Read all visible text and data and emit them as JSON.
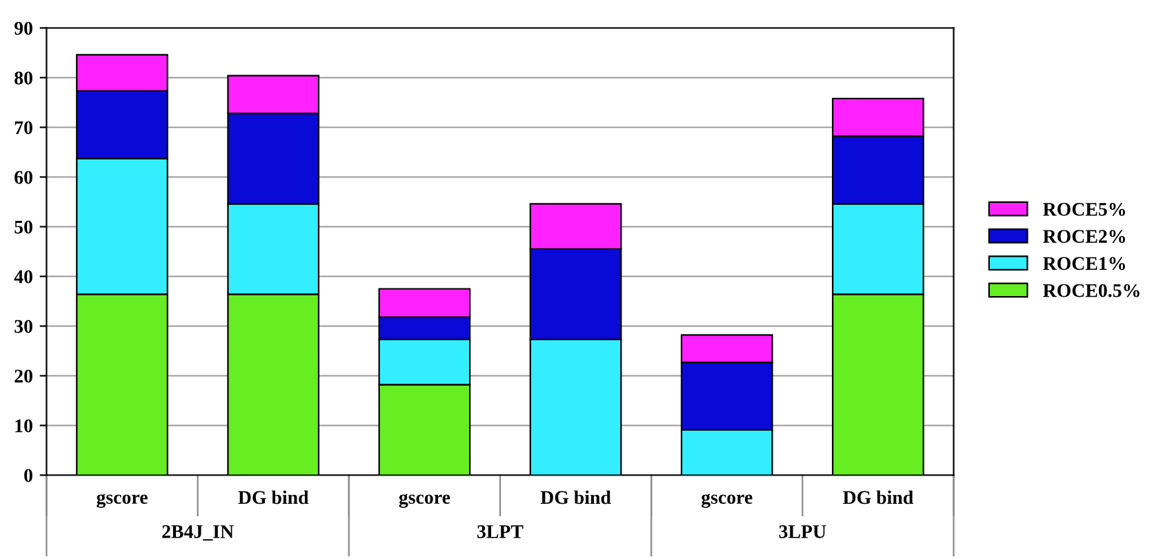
{
  "chart_data": {
    "type": "bar",
    "stacked": true,
    "categories": [
      "gscore",
      "DG bind",
      "gscore",
      "DG bind",
      "gscore",
      "DG bind"
    ],
    "series": [
      {
        "name": "ROCE0.5%",
        "color": "#66ee22",
        "values": [
          36.4,
          36.4,
          18.2,
          0,
          0,
          36.4
        ]
      },
      {
        "name": "ROCE1%",
        "color": "#33eeff",
        "values": [
          27.3,
          18.2,
          9.1,
          27.3,
          9.1,
          18.2
        ]
      },
      {
        "name": "ROCE2%",
        "color": "#0a0ad8",
        "values": [
          13.6,
          18.2,
          4.5,
          18.2,
          13.6,
          13.6
        ]
      },
      {
        "name": "ROCE5%",
        "color": "#ff22ff",
        "values": [
          7.3,
          7.6,
          5.7,
          9.1,
          5.5,
          7.6
        ]
      }
    ],
    "annotations": [
      "2B4J_IN",
      "3LPT",
      "3LPU"
    ],
    "ylim": [
      0,
      90
    ],
    "yticks": [
      0,
      10,
      20,
      30,
      40,
      50,
      60,
      70,
      80,
      90
    ],
    "grid": "y",
    "legend": "right"
  }
}
